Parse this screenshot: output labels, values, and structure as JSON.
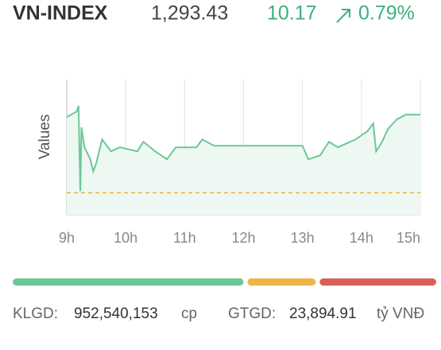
{
  "header": {
    "title": "VN-INDEX",
    "price": "1,293.43",
    "change": "10.17",
    "change_pct": "0.79%"
  },
  "chart_data": {
    "type": "line",
    "y_label": "Values",
    "x": [
      9.0,
      9.17,
      9.2,
      9.23,
      9.25,
      9.3,
      9.4,
      9.45,
      9.5,
      9.6,
      9.75,
      9.9,
      10.2,
      10.3,
      10.5,
      10.7,
      10.85,
      11.2,
      11.3,
      11.5,
      13.0,
      13.1,
      13.3,
      13.45,
      13.6,
      13.9,
      14.1,
      14.2,
      14.25,
      14.35,
      14.45,
      14.6,
      14.75,
      15.0
    ],
    "series": [
      {
        "color": "#6cc795",
        "fill": "#eef8f2",
        "values": [
          1293.12,
          1293.85,
          1294.57,
          1283.47,
          1291.77,
          1289.18,
          1287.62,
          1286.06,
          1287.1,
          1290.21,
          1288.66,
          1289.18,
          1288.66,
          1289.9,
          1288.66,
          1287.62,
          1289.18,
          1289.18,
          1290.21,
          1289.38,
          1289.38,
          1287.62,
          1288.14,
          1289.9,
          1289.18,
          1290.21,
          1291.25,
          1292.29,
          1288.66,
          1289.9,
          1291.56,
          1292.81,
          1293.43,
          1293.43
        ]
      }
    ],
    "reference_line": {
      "value": 1283.26,
      "color": "#f0b030"
    },
    "xlim": [
      9,
      15
    ],
    "ylim": [
      1280.4,
      1298.0
    ],
    "xticks": [
      {
        "value": 9,
        "label": "9h"
      },
      {
        "value": 10,
        "label": "10h"
      },
      {
        "value": 11,
        "label": "11h"
      },
      {
        "value": 12,
        "label": "12h"
      },
      {
        "value": 13,
        "label": "13h"
      },
      {
        "value": 14,
        "label": "14h"
      },
      {
        "value": 15,
        "label": "15h"
      }
    ],
    "grid": true
  },
  "breadth": [
    {
      "color": "#6cc795",
      "value": 291
    },
    {
      "color": "#edb54a",
      "value": 86
    },
    {
      "color": "#d9605a",
      "value": 147
    }
  ],
  "footer": {
    "volume_label": "KLGD:",
    "volume": "952,540,153",
    "volume_unit": "cp",
    "value_label": "GTGD:",
    "value": "23,894.91",
    "value_unit": "tỷ VNĐ"
  }
}
